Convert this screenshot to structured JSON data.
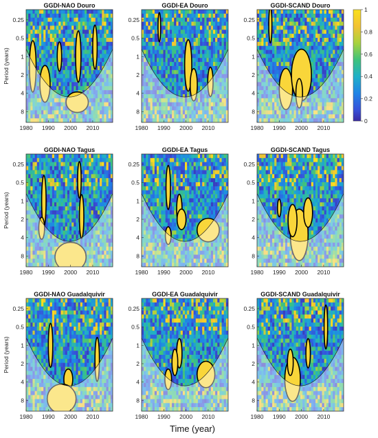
{
  "figure": {
    "xlabel": "Time (year)",
    "colorbar": {
      "ticks": [
        "1",
        "0.8",
        "0.6",
        "0.4",
        "0.2",
        "0"
      ],
      "range": [
        0,
        1
      ]
    }
  },
  "chart_data": [
    {
      "type": "heatmap",
      "title": "GGDI-NAO Douro",
      "ylabel": "Period (years)",
      "x_ticks": [
        "1980",
        "1990",
        "2000",
        "2010"
      ],
      "y_ticks": [
        "0.25",
        "0.5",
        "1",
        "2",
        "4",
        "8"
      ],
      "xlim": [
        1980,
        2019
      ],
      "ylim_years": [
        0.17,
        12
      ],
      "significant_regions": [
        {
          "x": 1983.0,
          "y": 1.45,
          "rx": 1.5,
          "ry": 0.35
        },
        {
          "x": 1988.5,
          "y": 2.8,
          "rx": 2.3,
          "ry": 0.25
        },
        {
          "x": 1995.0,
          "y": 1.0,
          "rx": 1.0,
          "ry": 0.2
        },
        {
          "x": 2003.5,
          "y": 1.0,
          "rx": 1.2,
          "ry": 0.35
        },
        {
          "x": 2003.0,
          "y": 5.6,
          "rx": 5.0,
          "ry": 0.14
        },
        {
          "x": 2011.0,
          "y": 0.7,
          "rx": 1.0,
          "ry": 0.3
        }
      ],
      "colors": [
        "#fde725",
        "#2ec4c0",
        "#3b4fd8",
        "#f7c830"
      ]
    },
    {
      "type": "heatmap",
      "title": "GGDI-EA Douro",
      "ylabel": "",
      "x_ticks": [
        "1980",
        "1990",
        "2000",
        "2010"
      ],
      "y_ticks": [
        "0.25",
        "0.5",
        "1",
        "2",
        "4",
        "8"
      ],
      "xlim": [
        1980,
        2019
      ],
      "ylim_years": [
        0.17,
        12
      ],
      "significant_regions": [
        {
          "x": 2001.0,
          "y": 1.4,
          "rx": 1.6,
          "ry": 0.35
        },
        {
          "x": 2003.5,
          "y": 2.9,
          "rx": 1.6,
          "ry": 0.22
        },
        {
          "x": 2011.0,
          "y": 2.6,
          "rx": 1.2,
          "ry": 0.2
        },
        {
          "x": 1988.0,
          "y": 0.33,
          "rx": 0.6,
          "ry": 0.2
        }
      ],
      "colors": [
        "#fde725",
        "#2ec4c0",
        "#3b4fd8",
        "#f7c830"
      ]
    },
    {
      "type": "heatmap",
      "title": "GGDI-SCAND Douro",
      "ylabel": "",
      "x_ticks": [
        "1980",
        "1990",
        "2000",
        "2010"
      ],
      "y_ticks": [
        "0.25",
        "0.5",
        "1",
        "2",
        "4",
        "8"
      ],
      "xlim": [
        1980,
        2019
      ],
      "ylim_years": [
        0.17,
        12
      ],
      "significant_regions": [
        {
          "x": 1993.0,
          "y": 3.4,
          "rx": 3.0,
          "ry": 0.28
        },
        {
          "x": 2000.0,
          "y": 2.0,
          "rx": 4.5,
          "ry": 0.35
        },
        {
          "x": 1999.0,
          "y": 4.0,
          "rx": 1.5,
          "ry": 0.2
        },
        {
          "x": 1986.0,
          "y": 0.3,
          "rx": 0.7,
          "ry": 0.25
        }
      ],
      "colors": [
        "#fde725",
        "#2ec4c0",
        "#3b4fd8",
        "#f7c830"
      ]
    },
    {
      "type": "heatmap",
      "title": "GGDI-NAO Tagus",
      "ylabel": "Period (years)",
      "x_ticks": [
        "1980",
        "1990",
        "2000",
        "2010"
      ],
      "y_ticks": [
        "0.25",
        "0.5",
        "1",
        "2",
        "4",
        "8"
      ],
      "xlim": [
        1980,
        2019
      ],
      "ylim_years": [
        0.17,
        12
      ],
      "significant_regions": [
        {
          "x": 1988.0,
          "y": 1.0,
          "rx": 1.0,
          "ry": 0.35
        },
        {
          "x": 1987.0,
          "y": 2.8,
          "rx": 1.3,
          "ry": 0.15
        },
        {
          "x": 2005.0,
          "y": 1.8,
          "rx": 1.0,
          "ry": 0.3
        },
        {
          "x": 2000.0,
          "y": 8.3,
          "rx": 7.0,
          "ry": 0.2
        },
        {
          "x": 2004.0,
          "y": 0.45,
          "rx": 0.8,
          "ry": 0.25
        }
      ],
      "colors": [
        "#fde725",
        "#2ec4c0",
        "#3b4fd8",
        "#f7c830"
      ]
    },
    {
      "type": "heatmap",
      "title": "GGDI-EA Tagus",
      "ylabel": "",
      "x_ticks": [
        "1980",
        "1990",
        "2000",
        "2010"
      ],
      "y_ticks": [
        "0.25",
        "0.5",
        "1",
        "2",
        "4",
        "8"
      ],
      "xlim": [
        1980,
        2019
      ],
      "ylim_years": [
        0.17,
        12
      ],
      "significant_regions": [
        {
          "x": 1992.0,
          "y": 0.6,
          "rx": 1.0,
          "ry": 0.3
        },
        {
          "x": 1997.0,
          "y": 1.35,
          "rx": 1.2,
          "ry": 0.2
        },
        {
          "x": 1998.0,
          "y": 2.0,
          "rx": 2.0,
          "ry": 0.14
        },
        {
          "x": 2010.0,
          "y": 3.0,
          "rx": 5.0,
          "ry": 0.16
        },
        {
          "x": 1992.0,
          "y": 3.7,
          "rx": 1.3,
          "ry": 0.12
        }
      ],
      "colors": [
        "#fde725",
        "#2ec4c0",
        "#3b4fd8",
        "#f7c830"
      ]
    },
    {
      "type": "heatmap",
      "title": "GGDI-SCAND Tagus",
      "ylabel": "",
      "x_ticks": [
        "1980",
        "1990",
        "2000",
        "2010"
      ],
      "y_ticks": [
        "0.25",
        "0.5",
        "1",
        "2",
        "4",
        "8"
      ],
      "xlim": [
        1980,
        2019
      ],
      "ylim_years": [
        0.17,
        12
      ],
      "significant_regions": [
        {
          "x": 1999.0,
          "y": 3.6,
          "rx": 4.0,
          "ry": 0.35
        },
        {
          "x": 1996.0,
          "y": 2.1,
          "rx": 2.0,
          "ry": 0.22
        },
        {
          "x": 2003.0,
          "y": 1.55,
          "rx": 2.0,
          "ry": 0.2
        },
        {
          "x": 1990.0,
          "y": 1.3,
          "rx": 0.8,
          "ry": 0.12
        }
      ],
      "colors": [
        "#fde725",
        "#2ec4c0",
        "#3b4fd8",
        "#f7c830"
      ]
    },
    {
      "type": "heatmap",
      "title": "GGDI-NAO Guadalquivir",
      "ylabel": "Period (years)",
      "x_ticks": [
        "1980",
        "1990",
        "2000",
        "2010"
      ],
      "y_ticks": [
        "0.25",
        "0.5",
        "1",
        "2",
        "4",
        "8"
      ],
      "xlim": [
        1980,
        2019
      ],
      "ylim_years": [
        0.17,
        12
      ],
      "significant_regions": [
        {
          "x": 1991.0,
          "y": 1.0,
          "rx": 1.0,
          "ry": 0.3
        },
        {
          "x": 2012.0,
          "y": 1.7,
          "rx": 1.0,
          "ry": 0.3
        },
        {
          "x": 1999.0,
          "y": 3.6,
          "rx": 2.0,
          "ry": 0.14
        },
        {
          "x": 1996.0,
          "y": 7.5,
          "rx": 6.5,
          "ry": 0.2
        }
      ],
      "colors": [
        "#fde725",
        "#2ec4c0",
        "#3b4fd8",
        "#f7c830"
      ]
    },
    {
      "type": "heatmap",
      "title": "GGDI-EA Guadalquivir",
      "ylabel": "",
      "x_ticks": [
        "1980",
        "1990",
        "2000",
        "2010"
      ],
      "y_ticks": [
        "0.25",
        "0.5",
        "1",
        "2",
        "4",
        "8"
      ],
      "xlim": [
        1980,
        2019
      ],
      "ylim_years": [
        0.17,
        12
      ],
      "significant_regions": [
        {
          "x": 1997.0,
          "y": 1.35,
          "rx": 1.2,
          "ry": 0.2
        },
        {
          "x": 1995.0,
          "y": 1.9,
          "rx": 1.3,
          "ry": 0.18
        },
        {
          "x": 1992.0,
          "y": 3.6,
          "rx": 1.5,
          "ry": 0.14
        },
        {
          "x": 2009.0,
          "y": 3.0,
          "rx": 4.0,
          "ry": 0.18
        }
      ],
      "colors": [
        "#fde725",
        "#2ec4c0",
        "#3b4fd8",
        "#f7c830"
      ]
    },
    {
      "type": "heatmap",
      "title": "GGDI-SCAND Guadalquivir",
      "ylabel": "",
      "x_ticks": [
        "1980",
        "1990",
        "2000",
        "2010"
      ],
      "y_ticks": [
        "0.25",
        "0.5",
        "1",
        "2",
        "4",
        "8"
      ],
      "xlim": [
        1980,
        2019
      ],
      "ylim_years": [
        0.17,
        12
      ],
      "significant_regions": [
        {
          "x": 1996.0,
          "y": 3.6,
          "rx": 3.5,
          "ry": 0.3
        },
        {
          "x": 1995.0,
          "y": 1.9,
          "rx": 1.3,
          "ry": 0.18
        },
        {
          "x": 2003.0,
          "y": 1.35,
          "rx": 1.0,
          "ry": 0.2
        },
        {
          "x": 2011.0,
          "y": 0.5,
          "rx": 0.8,
          "ry": 0.3
        }
      ],
      "colors": [
        "#fde725",
        "#2ec4c0",
        "#3b4fd8",
        "#f7c830"
      ]
    }
  ]
}
